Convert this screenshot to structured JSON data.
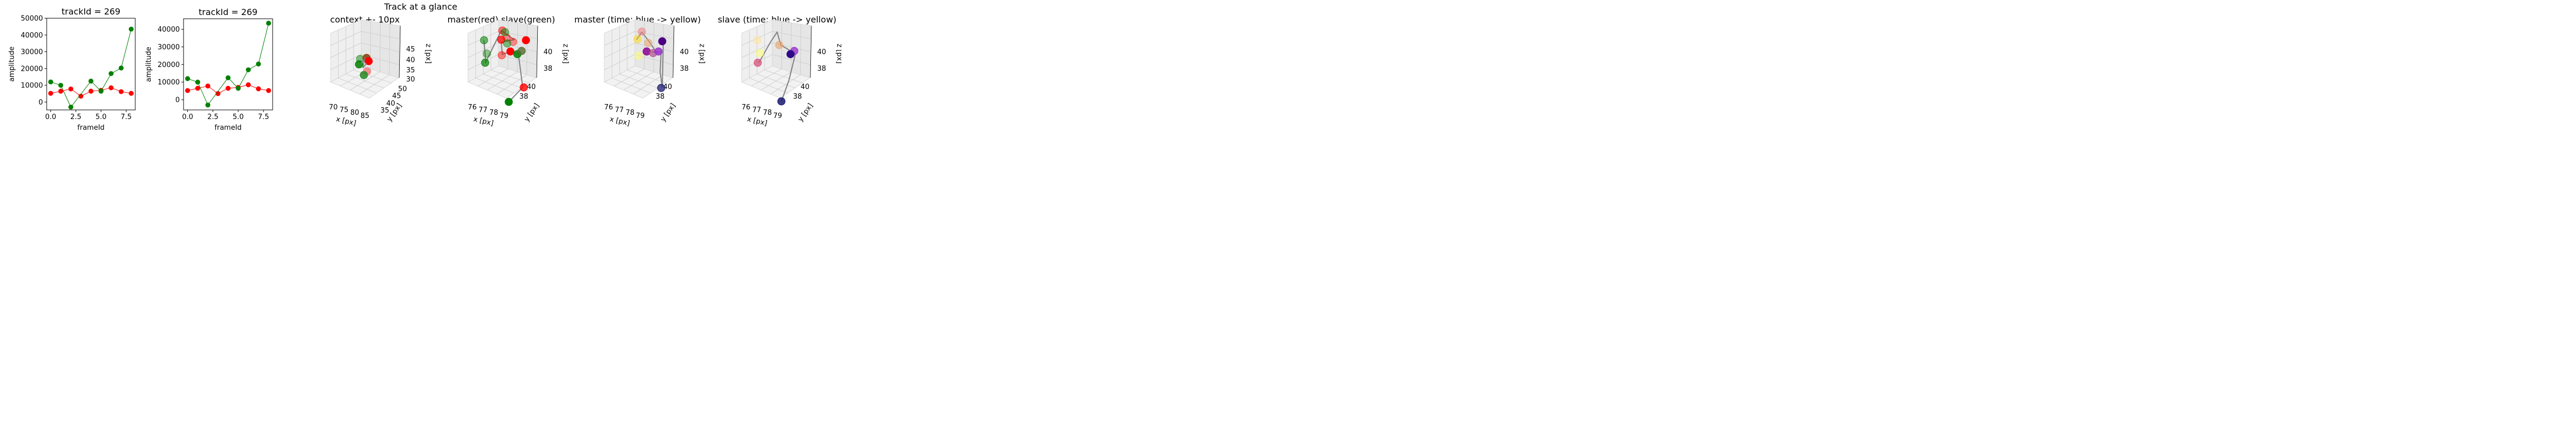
{
  "figure": {
    "suptitle": "Track at a glance"
  },
  "chart_data": [
    {
      "type": "line",
      "title": "trackId = 269",
      "xlabel": "frameId",
      "ylabel": "amplitude",
      "xlim": [
        -0.4,
        8.4
      ],
      "ylim": [
        -4700,
        50000
      ],
      "xticks": [
        "0.0",
        "2.5",
        "5.0",
        "7.5"
      ],
      "yticks": [
        "0",
        "10000",
        "20000",
        "30000",
        "40000",
        "50000"
      ],
      "series": [
        {
          "color": "#ff0000",
          "x": [
            0,
            1,
            2,
            3,
            4,
            5,
            6,
            7,
            8
          ],
          "y": [
            5200,
            6500,
            7800,
            3500,
            6500,
            7000,
            8500,
            6200,
            5200
          ]
        },
        {
          "color": "#008000",
          "x": [
            0,
            1,
            2,
            4,
            5,
            6,
            7,
            8
          ],
          "y": [
            12000,
            10000,
            -3000,
            12500,
            6500,
            17000,
            20300,
            43500
          ]
        }
      ]
    },
    {
      "type": "line",
      "title": "trackId = 269",
      "xlabel": "frameId",
      "ylabel": "amplitude",
      "xlim": [
        -0.4,
        8.4
      ],
      "ylim": [
        -5800,
        46000
      ],
      "xticks": [
        "0.0",
        "2.5",
        "5.0",
        "7.5"
      ],
      "yticks": [
        "0",
        "10000",
        "20000",
        "30000",
        "40000"
      ],
      "series": [
        {
          "color": "#ff0000",
          "x": [
            0,
            1,
            2,
            3,
            4,
            5,
            6,
            7,
            8
          ],
          "y": [
            5200,
            6500,
            7800,
            3500,
            6500,
            7000,
            8500,
            6200,
            5200
          ]
        },
        {
          "color": "#008000",
          "x": [
            0,
            1,
            2,
            4,
            5,
            6,
            7,
            8
          ],
          "y": [
            12000,
            10000,
            -3000,
            12500,
            6500,
            17000,
            20300,
            43500
          ]
        }
      ]
    },
    {
      "type": "scatter",
      "title": "context +- 10px",
      "xlabel": "x [px]",
      "ylabel": "y [px]",
      "zlabel": "z [px]",
      "xticks": [
        "70",
        "75",
        "80",
        "85"
      ],
      "yticks": [
        "35",
        "40",
        "45",
        "50"
      ],
      "zticks": [
        "30",
        "35",
        "40",
        "45"
      ],
      "points": [
        {
          "x": 79,
          "y": 40,
          "z": 39,
          "color": "#228b22"
        },
        {
          "x": 80,
          "y": 41,
          "z": 40,
          "color": "#ff0000"
        },
        {
          "x": 78,
          "y": 39,
          "z": 38,
          "color": "#008000"
        },
        {
          "x": 81,
          "y": 40,
          "z": 37,
          "color": "#f08080"
        },
        {
          "x": 79,
          "y": 39,
          "z": 36,
          "color": "#228b22"
        },
        {
          "x": 80,
          "y": 40,
          "z": 40,
          "color": "#8b6914"
        }
      ]
    },
    {
      "type": "scatter",
      "title": "master(red) slave(green)",
      "xlabel": "x [px]",
      "ylabel": "y [px]",
      "zlabel": "z [px]",
      "xticks": [
        "76",
        "77",
        "78",
        "79"
      ],
      "yticks": [
        "38",
        "40"
      ],
      "zticks": [
        "38",
        "40"
      ]
    },
    {
      "type": "scatter",
      "title": "master (time: blue -> yellow)",
      "xlabel": "x [px]",
      "ylabel": "y [px]",
      "zlabel": "z [px]",
      "xticks": [
        "76",
        "77",
        "78",
        "79"
      ],
      "yticks": [
        "38",
        "40"
      ],
      "zticks": [
        "38",
        "40"
      ]
    },
    {
      "type": "scatter",
      "title": "slave (time: blue -> yellow)",
      "xlabel": "x [px]",
      "ylabel": "y [px]",
      "zlabel": "z [px]",
      "xticks": [
        "76",
        "77",
        "78",
        "79"
      ],
      "yticks": [
        "38",
        "40"
      ],
      "zticks": [
        "38",
        "40"
      ]
    }
  ]
}
